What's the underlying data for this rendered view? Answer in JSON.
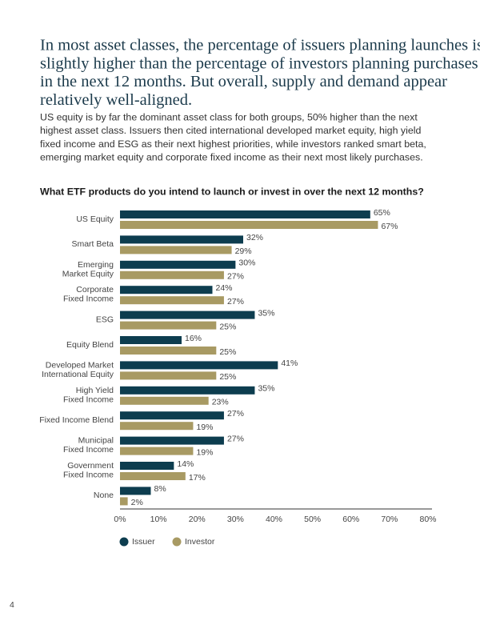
{
  "heading": [
    "In most asset classes, the percentage of issuers planning launches is",
    "slightly higher than the percentage of investors planning purchases",
    "in the next 12 months. But overall, supply and demand appear",
    "relatively well-aligned."
  ],
  "body": [
    "US equity is by far the dominant asset class for both groups, 50% higher than the next",
    "highest asset class. Issuers then cited international developed market equity, high yield",
    "fixed income and ESG as their next highest priorities, while investors ranked smart beta,",
    "emerging market equity and corporate fixed income as their next most likely purchases."
  ],
  "page_number": "4",
  "chart_data": {
    "type": "bar",
    "orientation": "horizontal",
    "title": "What ETF products do you intend to launch or invest in over the next 12 months?",
    "categories": [
      [
        "US Equity"
      ],
      [
        "Smart Beta"
      ],
      [
        "Emerging",
        "Market Equity"
      ],
      [
        "Corporate",
        "Fixed Income"
      ],
      [
        "ESG"
      ],
      [
        "Equity Blend"
      ],
      [
        "Developed Market",
        "International Equity"
      ],
      [
        "High Yield",
        "Fixed Income"
      ],
      [
        "Fixed Income Blend"
      ],
      [
        "Municipal",
        "Fixed Income"
      ],
      [
        "Government",
        "Fixed Income"
      ],
      [
        "None"
      ]
    ],
    "series": [
      {
        "name": "Issuer",
        "color": "#0d3d4f",
        "values": [
          65,
          32,
          30,
          24,
          35,
          16,
          41,
          35,
          27,
          27,
          14,
          8
        ],
        "value_labels": [
          "65%",
          "32%",
          "30%",
          "24%",
          "35%",
          "16%",
          "41%",
          "35%",
          "27%",
          "27%",
          "14%",
          "8%"
        ]
      },
      {
        "name": "Investor",
        "color": "#a89a63",
        "values": [
          67,
          29,
          27,
          27,
          25,
          25,
          25,
          23,
          19,
          19,
          17,
          2
        ],
        "value_labels": [
          "67%",
          "29%",
          "27%",
          "27%",
          "25%",
          "25%",
          "25%",
          "23%",
          "19%",
          "19%",
          "17%",
          "2%"
        ]
      }
    ],
    "xlim": [
      0,
      80
    ],
    "xticks": [
      {
        "value": 0,
        "label": "0%"
      },
      {
        "value": 10,
        "label": "10%"
      },
      {
        "value": 20,
        "label": "20%"
      },
      {
        "value": 30,
        "label": "30%"
      },
      {
        "value": 40,
        "label": "40%"
      },
      {
        "value": 50,
        "label": "50%"
      },
      {
        "value": 60,
        "label": "60%"
      },
      {
        "value": 70,
        "label": "70%"
      },
      {
        "value": 80,
        "label": "80%"
      }
    ],
    "legend": "bottom-left"
  }
}
